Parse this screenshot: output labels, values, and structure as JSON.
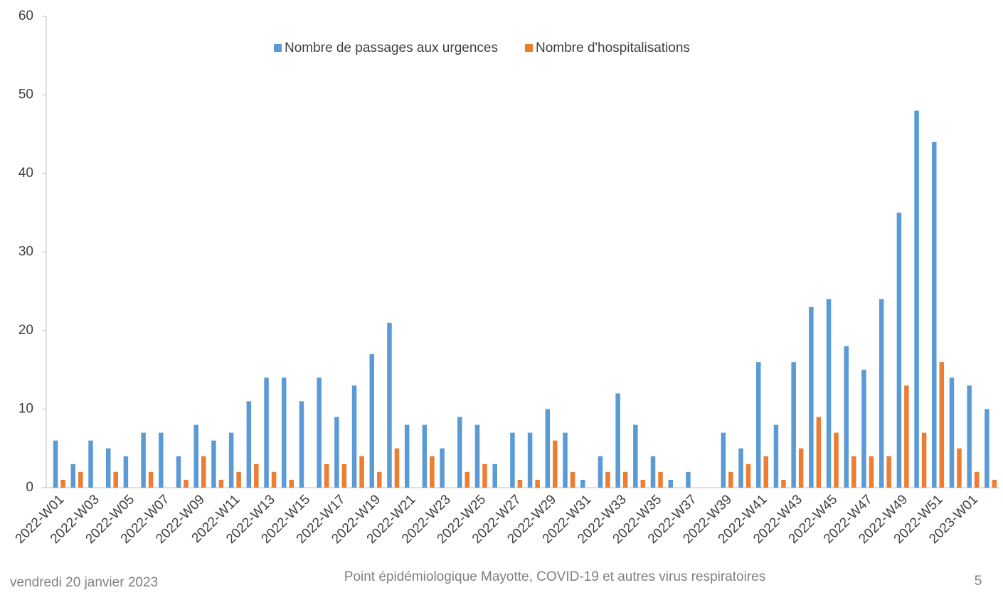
{
  "chart_data": {
    "type": "bar",
    "categories": [
      "2022-W01",
      null,
      "2022-W03",
      null,
      "2022-W05",
      null,
      "2022-W07",
      null,
      "2022-W09",
      null,
      "2022-W11",
      null,
      "2022-W13",
      null,
      "2022-W15",
      null,
      "2022-W17",
      null,
      "2022-W19",
      null,
      "2022-W21",
      null,
      "2022-W23",
      null,
      "2022-W25",
      null,
      "2022-W27",
      null,
      "2022-W29",
      null,
      "2022-W31",
      null,
      "2022-W33",
      null,
      "2022-W35",
      null,
      "2022-W37",
      null,
      "2022-W39",
      null,
      "2022-W41",
      null,
      "2022-W43",
      null,
      "2022-W45",
      null,
      "2022-W47",
      null,
      "2022-W49",
      null,
      "2022-W51",
      null,
      "2023-W01",
      null
    ],
    "series": [
      {
        "name": "Nombre de passages aux urgences",
        "color": "#5b9bd5",
        "values": [
          6,
          3,
          6,
          5,
          4,
          7,
          7,
          4,
          8,
          6,
          7,
          11,
          14,
          14,
          11,
          14,
          9,
          13,
          17,
          21,
          8,
          8,
          5,
          9,
          8,
          3,
          7,
          7,
          10,
          7,
          1,
          4,
          12,
          8,
          4,
          1,
          2,
          0,
          7,
          5,
          16,
          8,
          16,
          23,
          24,
          18,
          15,
          24,
          35,
          48,
          44,
          14,
          13,
          10
        ]
      },
      {
        "name": "Nombre d'hospitalisations",
        "color": "#ed7d31",
        "values": [
          1,
          2,
          0,
          2,
          0,
          2,
          0,
          1,
          4,
          1,
          2,
          3,
          2,
          1,
          0,
          3,
          3,
          4,
          2,
          5,
          0,
          4,
          0,
          2,
          3,
          0,
          1,
          1,
          6,
          2,
          0,
          2,
          2,
          1,
          2,
          0,
          0,
          0,
          2,
          3,
          4,
          1,
          5,
          9,
          7,
          4,
          4,
          4,
          13,
          7,
          16,
          5,
          2,
          1
        ]
      }
    ],
    "ylim": [
      0,
      60
    ],
    "yticks": [
      0,
      10,
      20,
      30,
      40,
      50,
      60
    ],
    "grid": false,
    "legend": "top"
  },
  "footer": {
    "date": "vendredi 20 janvier 2023",
    "caption": "Point épidémiologique Mayotte, COVID-19 et autres virus respiratoires",
    "page": "5"
  }
}
